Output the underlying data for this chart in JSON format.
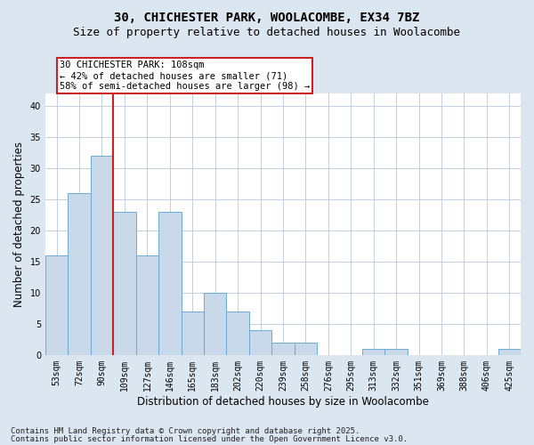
{
  "title1": "30, CHICHESTER PARK, WOOLACOMBE, EX34 7BZ",
  "title2": "Size of property relative to detached houses in Woolacombe",
  "xlabel": "Distribution of detached houses by size in Woolacombe",
  "ylabel": "Number of detached properties",
  "categories": [
    "53sqm",
    "72sqm",
    "90sqm",
    "109sqm",
    "127sqm",
    "146sqm",
    "165sqm",
    "183sqm",
    "202sqm",
    "220sqm",
    "239sqm",
    "258sqm",
    "276sqm",
    "295sqm",
    "313sqm",
    "332sqm",
    "351sqm",
    "369sqm",
    "388sqm",
    "406sqm",
    "425sqm"
  ],
  "values": [
    16,
    26,
    32,
    23,
    16,
    23,
    7,
    10,
    7,
    4,
    2,
    2,
    0,
    0,
    1,
    1,
    0,
    0,
    0,
    0,
    1
  ],
  "bar_color": "#c9d9ea",
  "bar_edge_color": "#6aaad4",
  "ylim": [
    0,
    42
  ],
  "yticks": [
    0,
    5,
    10,
    15,
    20,
    25,
    30,
    35,
    40
  ],
  "redline_index": 2,
  "annotation_text": "30 CHICHESTER PARK: 108sqm\n← 42% of detached houses are smaller (71)\n58% of semi-detached houses are larger (98) →",
  "annotation_box_color": "white",
  "annotation_box_edge_color": "#cc2222",
  "footer1": "Contains HM Land Registry data © Crown copyright and database right 2025.",
  "footer2": "Contains public sector information licensed under the Open Government Licence v3.0.",
  "outer_bg": "#dce6f0",
  "plot_bg": "white",
  "grid_color": "#b8c8dc",
  "title_fontsize": 10,
  "subtitle_fontsize": 9,
  "tick_fontsize": 7,
  "label_fontsize": 8.5,
  "annot_fontsize": 7.5,
  "footer_fontsize": 6.5
}
